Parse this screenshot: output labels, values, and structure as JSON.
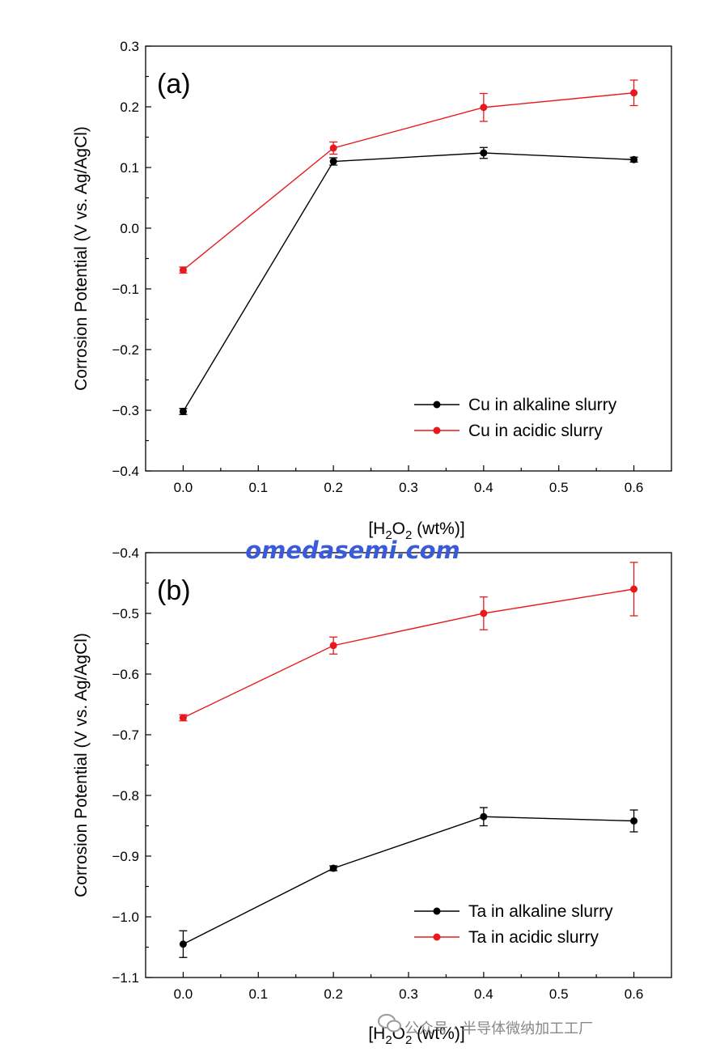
{
  "colors": {
    "alkaline": "#000000",
    "acidic": "#e8191c",
    "watermark": "#3a5bd9",
    "footer": "#888888"
  },
  "watermark": "omedasemi.com",
  "footer": {
    "icon": "wechat-icon",
    "text": "公众号 · 半导体微纳加工工厂"
  },
  "chart_data": [
    {
      "type": "line",
      "panel": "(a)",
      "xlabel_prefix": "[H",
      "xlabel_sub1": "2",
      "xlabel_mid": "O",
      "xlabel_sub2": "2",
      "xlabel_suffix": " (wt%)]",
      "ylabel": "Corrosion Potential (V vs. Ag/AgCl)",
      "xlim": [
        -0.05,
        0.65
      ],
      "ylim": [
        -0.4,
        0.3
      ],
      "xticks": [
        0.0,
        0.1,
        0.2,
        0.3,
        0.4,
        0.5,
        0.6
      ],
      "yticks": [
        -0.4,
        -0.3,
        -0.2,
        -0.1,
        0.0,
        0.1,
        0.2,
        0.3
      ],
      "xtick_labels": [
        "0.0",
        "0.1",
        "0.2",
        "0.3",
        "0.4",
        "0.5",
        "0.6"
      ],
      "ytick_labels": [
        "−0.4",
        "−0.3",
        "−0.2",
        "−0.1",
        "0.0",
        "0.1",
        "0.2",
        "0.3"
      ],
      "legend_position": "lower-right",
      "grid": false,
      "x": [
        0.0,
        0.2,
        0.4,
        0.6
      ],
      "series": [
        {
          "name": "Cu in alkaline slurry",
          "color": "#000000",
          "values": [
            -0.302,
            0.11,
            0.124,
            0.113
          ],
          "errors": [
            0.005,
            0.006,
            0.009,
            0.004
          ]
        },
        {
          "name": "Cu in acidic slurry",
          "color": "#e8191c",
          "values": [
            -0.069,
            0.132,
            0.199,
            0.223
          ],
          "errors": [
            0.005,
            0.01,
            0.023,
            0.021
          ]
        }
      ]
    },
    {
      "type": "line",
      "panel": "(b)",
      "xlabel_prefix": "[H",
      "xlabel_sub1": "2",
      "xlabel_mid": "O",
      "xlabel_sub2": "2",
      "xlabel_suffix": " (wt%)]",
      "ylabel": "Corrosion Potential (V vs. Ag/AgCl)",
      "xlim": [
        -0.05,
        0.65
      ],
      "ylim": [
        -1.1,
        -0.4
      ],
      "xticks": [
        0.0,
        0.1,
        0.2,
        0.3,
        0.4,
        0.5,
        0.6
      ],
      "yticks": [
        -1.1,
        -1.0,
        -0.9,
        -0.8,
        -0.7,
        -0.6,
        -0.5,
        -0.4
      ],
      "xtick_labels": [
        "0.0",
        "0.1",
        "0.2",
        "0.3",
        "0.4",
        "0.5",
        "0.6"
      ],
      "ytick_labels": [
        "−1.1",
        "−1.0",
        "−0.9",
        "−0.8",
        "−0.7",
        "−0.6",
        "−0.5",
        "−0.4"
      ],
      "legend_position": "lower-right",
      "grid": false,
      "x": [
        0.0,
        0.2,
        0.4,
        0.6
      ],
      "series": [
        {
          "name": "Ta in alkaline slurry",
          "color": "#000000",
          "values": [
            -1.045,
            -0.92,
            -0.835,
            -0.842
          ],
          "errors": [
            0.022,
            0.004,
            0.015,
            0.018
          ]
        },
        {
          "name": "Ta in acidic slurry",
          "color": "#e8191c",
          "values": [
            -0.672,
            -0.553,
            -0.5,
            -0.46
          ],
          "errors": [
            0.005,
            0.014,
            0.027,
            0.044
          ]
        }
      ]
    }
  ]
}
